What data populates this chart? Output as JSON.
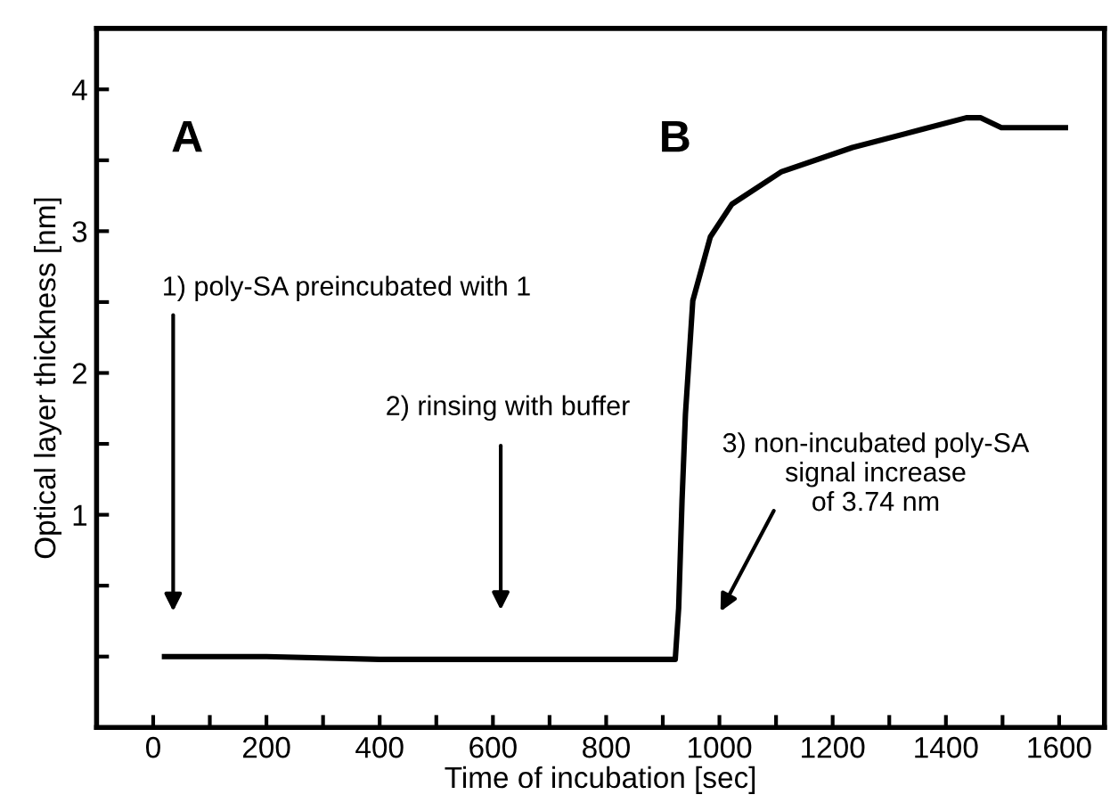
{
  "chart_data": {
    "type": "line",
    "xlabel": "Time of incubation [sec]",
    "ylabel": "Optical layer thickness [nm]",
    "xlim": [
      -100,
      1680
    ],
    "ylim": [
      -0.5,
      4.43
    ],
    "xticks": [
      0,
      {
        "value": 100,
        "label": null
      },
      200,
      {
        "value": 300,
        "label": null
      },
      400,
      {
        "value": 500,
        "label": null
      },
      600,
      {
        "value": 700,
        "label": null
      },
      800,
      {
        "value": 900,
        "label": null
      },
      1000,
      {
        "value": 1100,
        "label": null
      },
      1200,
      {
        "value": 1300,
        "label": null
      },
      1400,
      {
        "value": 1500,
        "label": null
      },
      1600
    ],
    "yticks": [
      {
        "value": 0,
        "label": null
      },
      {
        "value": 0.5,
        "label": null
      },
      1,
      {
        "value": 1.5,
        "label": null
      },
      2,
      {
        "value": 2.5,
        "label": null
      },
      3,
      {
        "value": 3.5,
        "label": null
      },
      4
    ],
    "series": [
      {
        "color": "#000000",
        "x": [
          20,
          200,
          400,
          600,
          800,
          922,
          928,
          934,
          940,
          953,
          984,
          1022,
          1110,
          1235,
          1360,
          1436,
          1461,
          1498,
          1611
        ],
        "values": [
          0,
          0,
          -0.02,
          -0.02,
          -0.02,
          -0.02,
          0.34,
          1.1,
          1.71,
          2.51,
          2.96,
          3.19,
          3.42,
          3.59,
          3.72,
          3.8,
          3.8,
          3.73,
          3.73
        ]
      }
    ],
    "annotations": [
      "A",
      "B",
      "1) poly-SA preincubated with 1",
      "2) rinsing with buffer",
      "3) non-incubated poly-SA\nsignal increase\nof 3.74 nm"
    ]
  }
}
